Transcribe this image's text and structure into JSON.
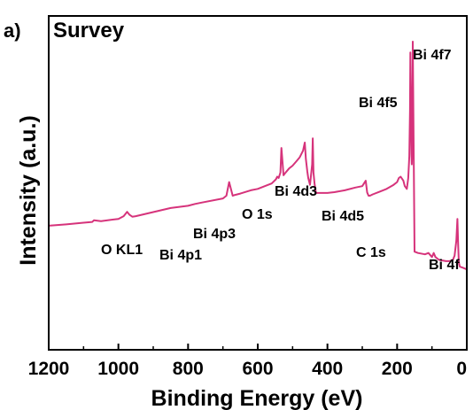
{
  "panel_label": "a)",
  "chart_data": {
    "type": "line",
    "title": "Survey",
    "xlabel": "Binding Energy (eV)",
    "ylabel": "Intensity (a.u.)",
    "xlim": [
      1200,
      0
    ],
    "x_reversed": true,
    "ylim": [
      0,
      100
    ],
    "xticks": [
      "1200",
      "1000",
      "800",
      "600",
      "400",
      "200",
      "0"
    ],
    "xtick_values": [
      1200,
      1000,
      800,
      600,
      400,
      200,
      0
    ],
    "y_ticks_shown": false,
    "grid": false,
    "series": [
      {
        "color": "#d6337b",
        "x": [
          1200,
          1150,
          1100,
          1075,
          1070,
          1050,
          1000,
          985,
          975,
          968,
          960,
          950,
          900,
          850,
          800,
          780,
          760,
          700,
          690,
          682,
          675,
          672,
          665,
          650,
          620,
          600,
          570,
          560,
          548,
          544,
          540,
          535,
          532,
          529,
          526,
          520,
          510,
          500,
          490,
          480,
          470,
          465,
          462,
          458,
          455,
          450,
          444,
          442,
          440,
          437,
          433,
          420,
          400,
          380,
          350,
          320,
          300,
          290,
          286,
          282,
          278,
          270,
          250,
          230,
          210,
          200,
          195,
          190,
          182,
          178,
          172,
          168,
          165,
          163,
          162,
          160,
          159,
          158,
          157,
          156,
          155,
          150,
          140,
          120,
          110,
          100,
          95,
          90,
          80,
          60,
          50,
          40,
          35,
          30,
          27,
          25,
          23,
          20,
          10,
          0
        ],
        "y": [
          32.5,
          33,
          33.6,
          33.9,
          34.5,
          34.2,
          35,
          36,
          37.6,
          36.5,
          35.8,
          36,
          37.5,
          39,
          39.8,
          40.5,
          41,
          42.5,
          43.5,
          48.5,
          45,
          43.5,
          43.8,
          44.3,
          45.5,
          46,
          47.5,
          48,
          49.5,
          50.5,
          50,
          52,
          61,
          56,
          51,
          52,
          53.5,
          54.5,
          56,
          57.5,
          60,
          63,
          57,
          52.5,
          50,
          47.5,
          55,
          64.5,
          52,
          48,
          44.5,
          44.5,
          44.5,
          44.8,
          45.5,
          46.5,
          47,
          49,
          44.7,
          43.5,
          43.5,
          44,
          45,
          46,
          47.5,
          48.5,
          50,
          50.5,
          49,
          47,
          46,
          50,
          58,
          75,
          96,
          72,
          59,
          55,
          58,
          75,
          100,
          23,
          22.5,
          22,
          22.5,
          21,
          22.5,
          21,
          20,
          19.5,
          19.5,
          20,
          21.5,
          27,
          35,
          26,
          19,
          17.5,
          17,
          16.5
        ]
      }
    ],
    "annotations": [
      "O KL1",
      "Bi 4p1",
      "Bi 4p3",
      "O 1s",
      "Bi 4d3",
      "Bi 4d5",
      "C 1s",
      "Bi 4f5",
      "Bi 4f7",
      "Bi 4f"
    ]
  }
}
